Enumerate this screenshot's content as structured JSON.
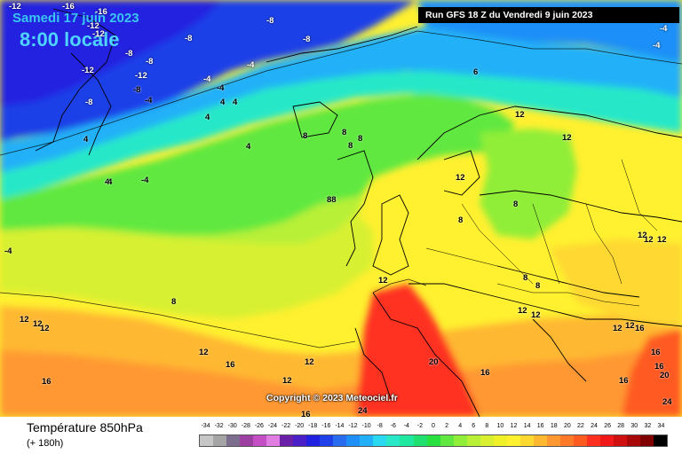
{
  "header": {
    "date": "Samedi 17 juin 2023",
    "time": "8:00 locale",
    "run": "Run GFS 18 Z du Vendredi 9 juin 2023"
  },
  "copyright": "Copyright © 2023 Meteociel.fr",
  "legend": {
    "title": "Température 850hPa",
    "subtitle": "(+ 180h)",
    "ticks": [
      "-34",
      "-32",
      "-30",
      "-28",
      "-26",
      "-24",
      "-22",
      "-20",
      "-18",
      "-16",
      "-14",
      "-12",
      "-10",
      "-8",
      "-6",
      "-4",
      "-2",
      "0",
      "2",
      "4",
      "6",
      "8",
      "10",
      "12",
      "14",
      "16",
      "18",
      "20",
      "22",
      "24",
      "26",
      "28",
      "30",
      "32",
      "34"
    ],
    "colors": [
      "#c6c6c6",
      "#a5a5a5",
      "#7d6d8f",
      "#9c3fa0",
      "#c44ec4",
      "#e07de0",
      "#6a1fa8",
      "#4a1fc8",
      "#2020e0",
      "#1f3fe8",
      "#2a6cf0",
      "#1f8ff8",
      "#22b0f8",
      "#2ad8f0",
      "#28e8c8",
      "#1fe8a0",
      "#20e070",
      "#28e040",
      "#60e840",
      "#90ee38",
      "#b8f038",
      "#d8f030",
      "#f0f028",
      "#fff030",
      "#ffd830",
      "#ffb830",
      "#ff9830",
      "#ff7a28",
      "#ff5a20",
      "#ff3020",
      "#f01818",
      "#d01010",
      "#a80808",
      "#800000",
      "#000000"
    ]
  },
  "map": {
    "isotherm_labels": [
      "-12",
      "-16",
      "-16",
      "-8",
      "-8",
      "-12",
      "-12",
      "-8",
      "-8",
      "-8",
      "-8",
      "-4",
      "-4",
      "-12",
      "-12",
      "-8",
      "-4",
      "-4",
      "4",
      "4",
      "4",
      "4",
      "-4",
      "4",
      "-4",
      "8",
      "8",
      "8",
      "8",
      "8",
      "88",
      "6",
      "12",
      "12",
      "12",
      "8",
      "8",
      "12",
      "12",
      "12",
      "8",
      "8",
      "12",
      "12",
      "12",
      "12",
      "12",
      "16",
      "16",
      "12",
      "12",
      "16",
      "12",
      "12",
      "20",
      "16",
      "16",
      "16",
      "16",
      "20",
      "24",
      "24",
      "16",
      "12",
      "12",
      "4",
      "-4",
      "-4",
      "-4"
    ]
  }
}
